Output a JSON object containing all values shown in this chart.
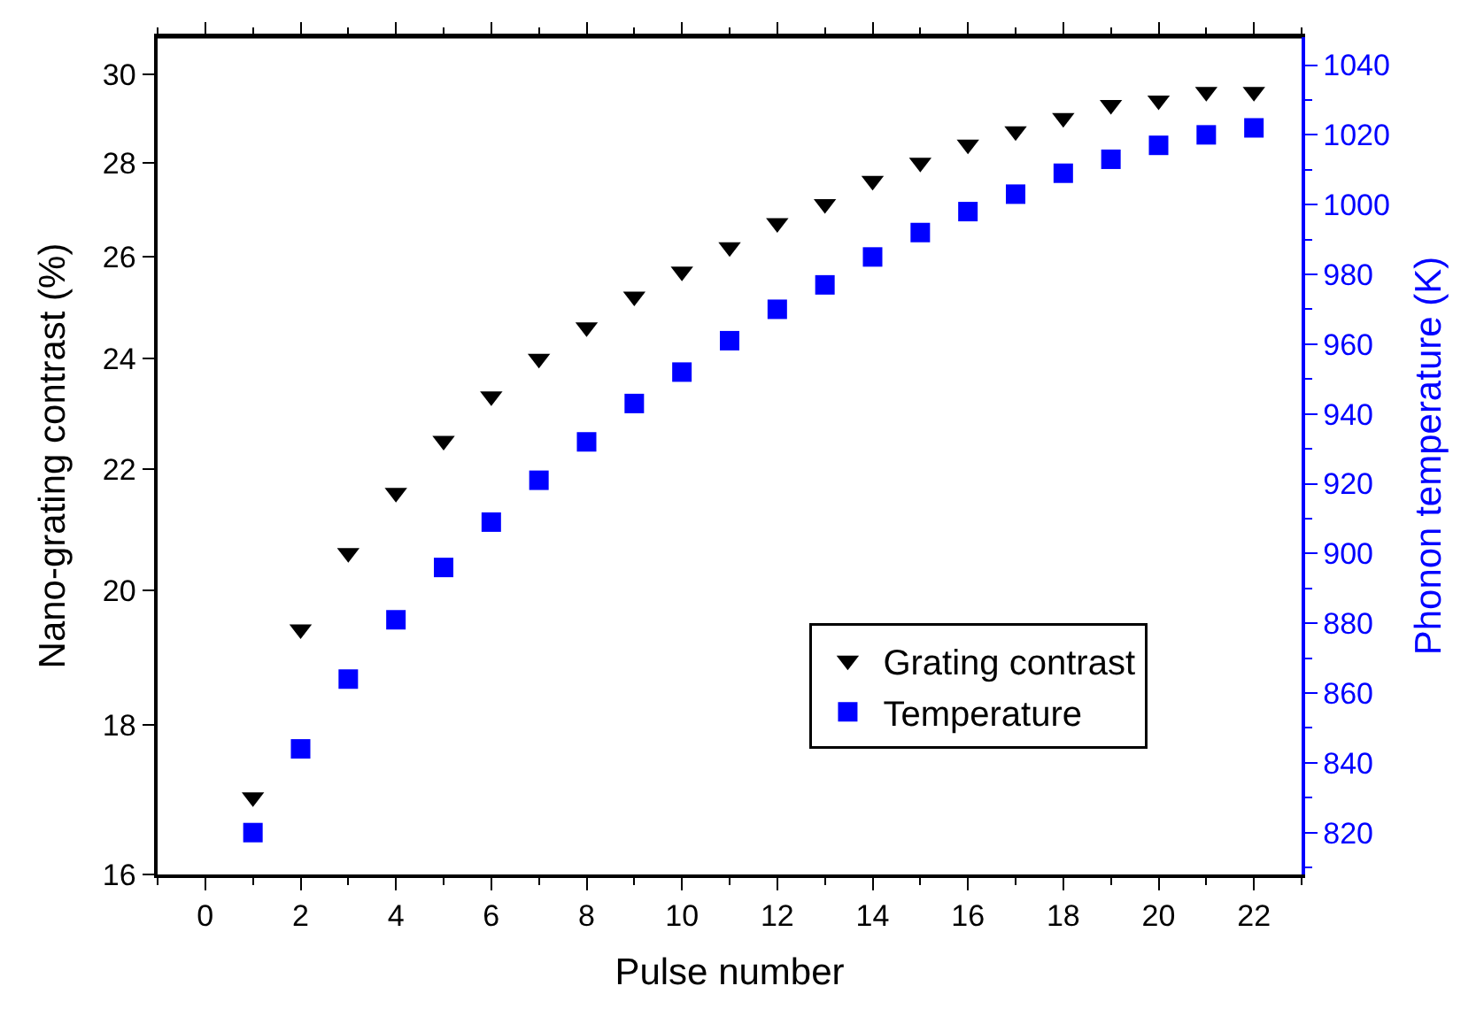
{
  "chart_data": {
    "type": "scatter",
    "xlabel": "Pulse number",
    "ylabel": "Nano-grating contrast (%)",
    "y2label": "Phonon temperature (K)",
    "x": [
      1,
      2,
      3,
      4,
      5,
      6,
      7,
      8,
      9,
      10,
      11,
      12,
      13,
      14,
      15,
      16,
      17,
      18,
      19,
      20,
      21,
      22
    ],
    "series": [
      {
        "name": "Grating contrast",
        "color": "#000000",
        "marker": "triangle",
        "values": [
          17.0,
          19.4,
          20.6,
          21.6,
          22.5,
          23.3,
          24.0,
          24.6,
          25.2,
          25.7,
          26.2,
          26.7,
          27.1,
          27.6,
          28.0,
          28.4,
          28.7,
          29.0,
          29.3,
          29.4,
          29.6,
          29.6
        ]
      },
      {
        "name": "Temperature",
        "color": "#0000ff",
        "marker": "square",
        "axis": "y2",
        "values": [
          820,
          844,
          864,
          881,
          896,
          909,
          921,
          932,
          943,
          952,
          961,
          970,
          977,
          985,
          992,
          998,
          1003,
          1009,
          1013,
          1017,
          1020,
          1022
        ]
      }
    ],
    "log": "y",
    "xlim": [
      -1,
      23
    ],
    "xticks": [
      0,
      2,
      4,
      6,
      8,
      10,
      12,
      14,
      16,
      18,
      20,
      22
    ],
    "ylim": [
      16,
      30.9
    ],
    "yticks": [
      16,
      18,
      20,
      22,
      24,
      26,
      28,
      30
    ],
    "y2lim": [
      808,
      1048
    ],
    "y2ticks": [
      820,
      840,
      860,
      880,
      900,
      920,
      940,
      960,
      980,
      1000,
      1020,
      1040
    ],
    "grid": false,
    "legend": "bottom right"
  }
}
